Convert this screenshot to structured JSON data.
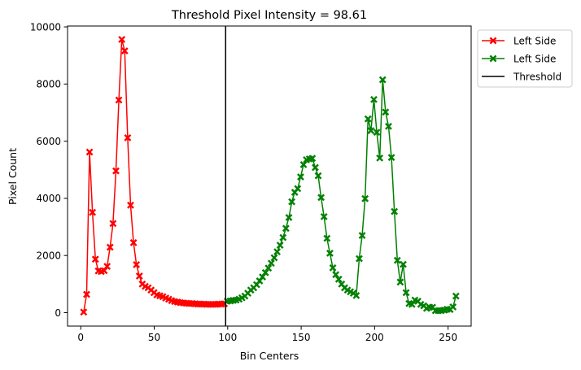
{
  "chart_data": {
    "type": "line",
    "title": "Threshold Pixel Intensity = 98.61",
    "xlabel": "Bin Centers",
    "ylabel": "Pixel Count",
    "xlim": [
      -9.0,
      265.7
    ],
    "ylim": [
      -470,
      10030
    ],
    "x_ticks": [
      0,
      50,
      100,
      150,
      200,
      250
    ],
    "y_ticks": [
      0,
      2000,
      4000,
      6000,
      8000,
      10000
    ],
    "grid": false,
    "legend_position": "outside-top-right",
    "threshold": {
      "name": "Threshold",
      "value": 98.61,
      "color": "#000000"
    },
    "series": [
      {
        "name": "Left Side",
        "color": "#ff0000",
        "marker": "X",
        "x": [
          1.99,
          3.99,
          5.98,
          7.98,
          9.97,
          11.97,
          13.96,
          15.96,
          17.95,
          19.95,
          21.94,
          23.94,
          25.93,
          27.93,
          29.92,
          31.92,
          33.91,
          35.91,
          37.9,
          39.9,
          41.89,
          43.89,
          45.88,
          47.88,
          49.87,
          51.87,
          53.86,
          55.86,
          57.85,
          59.85,
          61.84,
          63.84,
          65.83,
          67.83,
          69.82,
          71.82,
          73.81,
          75.81,
          77.8,
          79.8,
          81.79,
          83.79,
          85.78,
          87.78,
          89.77,
          91.77,
          93.76,
          95.76,
          97.75
        ],
        "y": [
          20,
          640,
          5620,
          3510,
          1870,
          1460,
          1440,
          1470,
          1620,
          2290,
          3120,
          4960,
          7440,
          9560,
          9160,
          6120,
          3760,
          2450,
          1680,
          1280,
          1000,
          920,
          870,
          790,
          700,
          620,
          590,
          560,
          510,
          470,
          420,
          390,
          370,
          350,
          340,
          330,
          320,
          320,
          310,
          300,
          300,
          300,
          290,
          290,
          290,
          290,
          300,
          300,
          310
        ]
      },
      {
        "name": "Left Side",
        "color": "#008000",
        "marker": "X",
        "x": [
          99.75,
          101.74,
          103.74,
          105.73,
          107.73,
          109.72,
          111.72,
          113.71,
          115.71,
          117.7,
          119.7,
          121.69,
          123.69,
          125.68,
          127.68,
          129.67,
          131.67,
          133.66,
          135.66,
          137.65,
          139.65,
          141.64,
          143.64,
          145.63,
          147.63,
          149.62,
          151.62,
          153.61,
          155.61,
          157.6,
          159.6,
          161.59,
          163.59,
          165.58,
          167.58,
          169.57,
          171.57,
          173.56,
          175.56,
          177.55,
          179.55,
          181.54,
          183.54,
          185.53,
          187.53,
          189.52,
          191.52,
          193.51,
          195.51,
          197.5,
          199.5,
          201.49,
          203.49,
          205.48,
          207.48,
          209.47,
          211.47,
          213.46,
          215.46,
          217.45,
          219.45,
          221.44,
          223.44,
          225.43,
          227.43,
          229.42,
          231.42,
          233.41,
          235.41,
          237.4,
          239.4,
          241.39,
          243.39,
          245.38,
          247.38,
          249.37,
          251.37,
          253.36,
          255.36
        ],
        "y": [
          400,
          410,
          430,
          440,
          470,
          520,
          580,
          680,
          790,
          870,
          980,
          1110,
          1250,
          1400,
          1560,
          1730,
          1920,
          2130,
          2360,
          2630,
          2950,
          3330,
          3880,
          4210,
          4340,
          4750,
          5180,
          5350,
          5380,
          5400,
          5080,
          4790,
          4030,
          3360,
          2600,
          2080,
          1570,
          1330,
          1170,
          1000,
          870,
          790,
          730,
          680,
          600,
          1890,
          2700,
          3990,
          6780,
          6370,
          7460,
          6310,
          5410,
          8150,
          7020,
          6520,
          5430,
          3540,
          1830,
          1070,
          1690,
          700,
          320,
          290,
          440,
          400,
          290,
          240,
          150,
          190,
          190,
          70,
          70,
          70,
          90,
          120,
          110,
          200,
          580
        ]
      }
    ]
  }
}
